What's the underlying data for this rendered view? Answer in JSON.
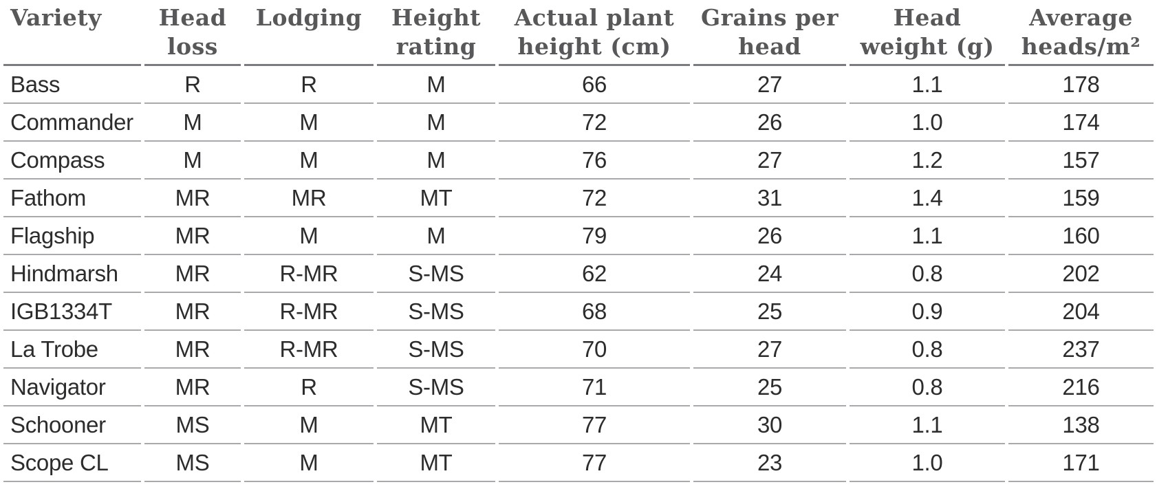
{
  "colors": {
    "header_text": "#58585a",
    "body_text": "#2c2c2e",
    "header_rule": "#7b7c7f",
    "row_rule": "#a7a9ac",
    "background": "#ffffff"
  },
  "table": {
    "columns": [
      {
        "id": "variety",
        "header_lines": [
          "Variety"
        ],
        "align": "left"
      },
      {
        "id": "head-loss",
        "header_lines": [
          "Head",
          "loss"
        ],
        "align": "center"
      },
      {
        "id": "lodging",
        "header_lines": [
          "Lodging"
        ],
        "align": "center"
      },
      {
        "id": "height-rating",
        "header_lines": [
          "Height",
          "rating"
        ],
        "align": "center"
      },
      {
        "id": "actual-plant-height-cm",
        "header_lines": [
          "Actual plant",
          "height (cm)"
        ],
        "align": "center"
      },
      {
        "id": "grains-per-head",
        "header_lines": [
          "Grains per",
          "head"
        ],
        "align": "center"
      },
      {
        "id": "head-weight-g",
        "header_lines": [
          "Head",
          "weight (g)"
        ],
        "align": "center"
      },
      {
        "id": "average-heads-m2",
        "header_lines": [
          "Average",
          "heads/m²"
        ],
        "align": "center"
      }
    ],
    "rows": [
      [
        "Bass",
        "R",
        "R",
        "M",
        "66",
        "27",
        "1.1",
        "178"
      ],
      [
        "Commander",
        "M",
        "M",
        "M",
        "72",
        "26",
        "1.0",
        "174"
      ],
      [
        "Compass",
        "M",
        "M",
        "M",
        "76",
        "27",
        "1.2",
        "157"
      ],
      [
        "Fathom",
        "MR",
        "MR",
        "MT",
        "72",
        "31",
        "1.4",
        "159"
      ],
      [
        "Flagship",
        "MR",
        "M",
        "M",
        "79",
        "26",
        "1.1",
        "160"
      ],
      [
        "Hindmarsh",
        "MR",
        "R-MR",
        "S-MS",
        "62",
        "24",
        "0.8",
        "202"
      ],
      [
        "IGB1334T",
        "MR",
        "R-MR",
        "S-MS",
        "68",
        "25",
        "0.9",
        "204"
      ],
      [
        "La Trobe",
        "MR",
        "R-MR",
        "S-MS",
        "70",
        "27",
        "0.8",
        "237"
      ],
      [
        "Navigator",
        "MR",
        "R",
        "S-MS",
        "71",
        "25",
        "0.8",
        "216"
      ],
      [
        "Schooner",
        "MS",
        "M",
        "MT",
        "77",
        "30",
        "1.1",
        "138"
      ],
      [
        "Scope CL",
        "MS",
        "M",
        "MT",
        "77",
        "23",
        "1.0",
        "171"
      ]
    ]
  },
  "chart_data": {
    "type": "table",
    "columns": [
      "Variety",
      "Head loss",
      "Lodging",
      "Height rating",
      "Actual plant height (cm)",
      "Grains per head",
      "Head weight (g)",
      "Average heads/m²"
    ],
    "rows": [
      [
        "Bass",
        "R",
        "R",
        "M",
        66,
        27,
        1.1,
        178
      ],
      [
        "Commander",
        "M",
        "M",
        "M",
        72,
        26,
        1.0,
        174
      ],
      [
        "Compass",
        "M",
        "M",
        "M",
        76,
        27,
        1.2,
        157
      ],
      [
        "Fathom",
        "MR",
        "MR",
        "MT",
        72,
        31,
        1.4,
        159
      ],
      [
        "Flagship",
        "MR",
        "M",
        "M",
        79,
        26,
        1.1,
        160
      ],
      [
        "Hindmarsh",
        "MR",
        "R-MR",
        "S-MS",
        62,
        24,
        0.8,
        202
      ],
      [
        "IGB1334T",
        "MR",
        "R-MR",
        "S-MS",
        68,
        25,
        0.9,
        204
      ],
      [
        "La Trobe",
        "MR",
        "R-MR",
        "S-MS",
        70,
        27,
        0.8,
        237
      ],
      [
        "Navigator",
        "MR",
        "R",
        "S-MS",
        71,
        25,
        0.8,
        216
      ],
      [
        "Schooner",
        "MS",
        "M",
        "MT",
        77,
        30,
        1.1,
        138
      ],
      [
        "Scope CL",
        "MS",
        "M",
        "MT",
        77,
        23,
        1.0,
        171
      ]
    ]
  }
}
